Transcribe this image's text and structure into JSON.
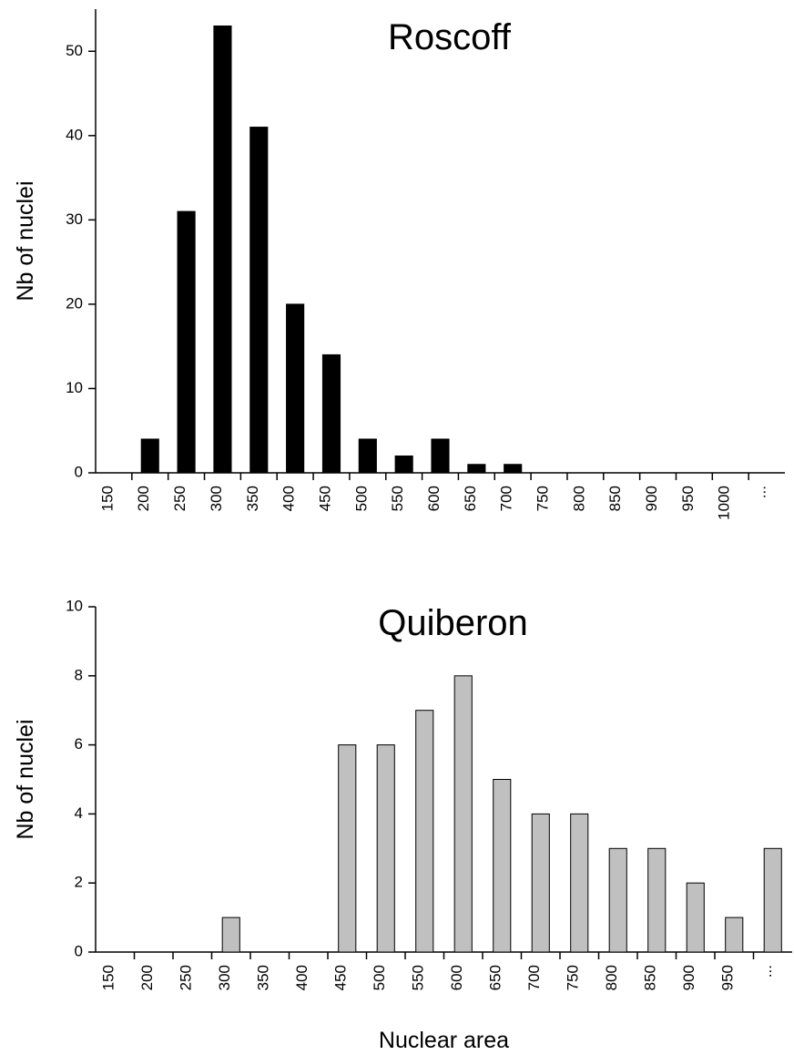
{
  "chart_data": [
    {
      "type": "bar",
      "title": "Roscoff",
      "y_label": "Nb of nuclei",
      "categories": [
        "150",
        "200",
        "250",
        "300",
        "350",
        "400",
        "450",
        "500",
        "550",
        "600",
        "650",
        "700",
        "750",
        "800",
        "850",
        "900",
        "950",
        "1000",
        "..."
      ],
      "values": [
        0,
        4,
        31,
        53,
        41,
        20,
        14,
        4,
        2,
        4,
        1,
        1,
        0,
        0,
        0,
        0,
        0,
        0,
        0
      ],
      "color": "#000000",
      "edgecolor": "#000000",
      "ylim": [
        0,
        55
      ],
      "yticks": [
        0,
        10,
        20,
        30,
        40,
        50
      ]
    },
    {
      "type": "bar",
      "title": "Quiberon",
      "y_label": "Nb of nuclei",
      "x_label": "Nuclear area",
      "categories": [
        "150",
        "200",
        "250",
        "300",
        "350",
        "400",
        "450",
        "500",
        "550",
        "600",
        "650",
        "700",
        "750",
        "800",
        "850",
        "900",
        "950",
        "..."
      ],
      "values": [
        0,
        0,
        0,
        1,
        0,
        0,
        6,
        6,
        7,
        8,
        5,
        4,
        4,
        3,
        3,
        2,
        1,
        3
      ],
      "color": "#c0c0c0",
      "edgecolor": "#000000",
      "ylim": [
        0,
        10
      ],
      "yticks": [
        0,
        2,
        4,
        6,
        8,
        10
      ]
    }
  ]
}
